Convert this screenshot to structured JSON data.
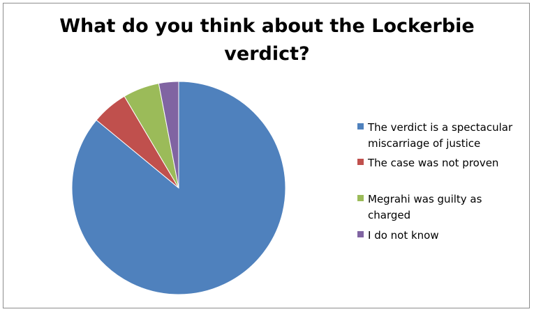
{
  "chart_data": {
    "type": "pie",
    "title_lines": [
      "What do you think about the Lockerbie",
      "verdict?"
    ],
    "categories": [
      "The verdict is a spectacular miscarriage of justice",
      "The case was not proven",
      "Megrahi was guilty as charged",
      "I do not know"
    ],
    "values": [
      86,
      5.5,
      5.5,
      3
    ],
    "colors": [
      "#4f81bd",
      "#c0504d",
      "#9bbb59",
      "#8064a2"
    ],
    "legend_position": "right",
    "legend_lines": [
      [
        "The verdict is a spectacular",
        "miscarriage of justice"
      ],
      [
        "The case was not proven"
      ],
      [
        "Megrahi was guilty as charged"
      ],
      [
        "I do not know"
      ]
    ]
  }
}
